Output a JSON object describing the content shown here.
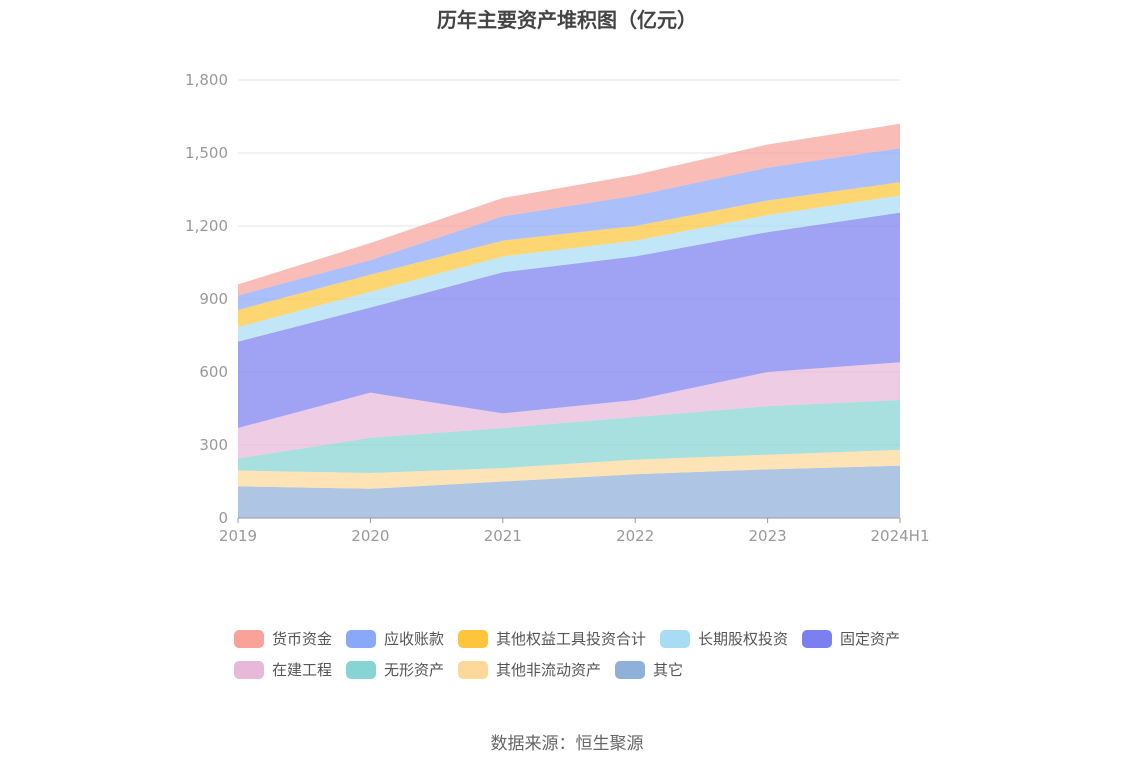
{
  "title": "历年主要资产堆积图（亿元）",
  "source": "数据来源：恒生聚源",
  "chart_data": {
    "type": "area",
    "stacked": true,
    "categories": [
      "2019",
      "2020",
      "2021",
      "2022",
      "2023",
      "2024H1"
    ],
    "y_ticks": [
      "0",
      "300",
      "600",
      "900",
      "1,200",
      "1,500",
      "1,800"
    ],
    "ylim": [
      0,
      1800
    ],
    "grid": true,
    "legend_position": "bottom",
    "series": [
      {
        "name": "其它",
        "color": "#8fb0d9",
        "values": [
          130,
          120,
          150,
          180,
          200,
          215
        ]
      },
      {
        "name": "其他非流动资产",
        "color": "#fdd89a",
        "values": [
          65,
          65,
          55,
          60,
          60,
          65
        ]
      },
      {
        "name": "无形资产",
        "color": "#86d4d4",
        "values": [
          50,
          145,
          165,
          175,
          200,
          205
        ]
      },
      {
        "name": "在建工程",
        "color": "#e8b8d8",
        "values": [
          125,
          185,
          60,
          70,
          140,
          155
        ]
      },
      {
        "name": "固定资产",
        "color": "#7b7ff0",
        "values": [
          355,
          350,
          580,
          590,
          575,
          615
        ]
      },
      {
        "name": "长期股权投资",
        "color": "#a8dcf5",
        "values": [
          60,
          65,
          65,
          65,
          70,
          70
        ]
      },
      {
        "name": "其他权益工具投资合计",
        "color": "#fcc53a",
        "values": [
          70,
          70,
          65,
          60,
          60,
          55
        ]
      },
      {
        "name": "应收账款",
        "color": "#8aa8f8",
        "values": [
          60,
          60,
          100,
          125,
          135,
          140
        ]
      },
      {
        "name": "货币资金",
        "color": "#f8a29a",
        "values": [
          45,
          70,
          75,
          85,
          95,
          100
        ]
      }
    ]
  }
}
